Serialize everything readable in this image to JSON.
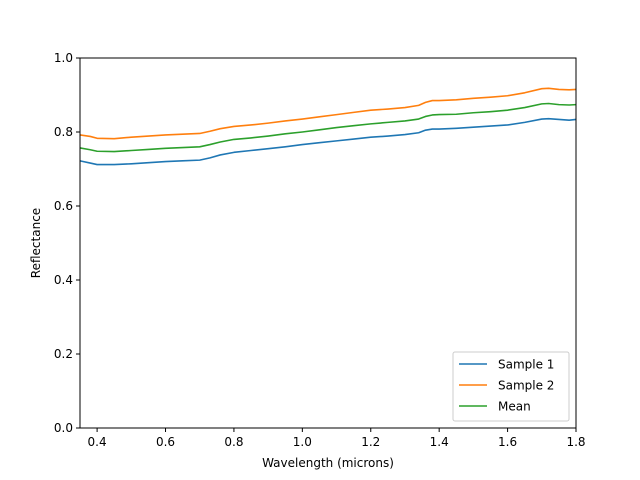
{
  "chart_data": {
    "type": "line",
    "title": "",
    "xlabel": "Wavelength (microns)",
    "ylabel": "Reflectance",
    "xlim": [
      0.35,
      1.8
    ],
    "ylim": [
      0.0,
      1.0
    ],
    "xticks": [
      0.4,
      0.6,
      0.8,
      1.0,
      1.2,
      1.4,
      1.6,
      1.8
    ],
    "xtick_labels": [
      "0.4",
      "0.6",
      "0.8",
      "1.0",
      "1.2",
      "1.4",
      "1.6",
      "1.8"
    ],
    "yticks": [
      0.0,
      0.2,
      0.4,
      0.6,
      0.8,
      1.0
    ],
    "ytick_labels": [
      "0.0",
      "0.2",
      "0.4",
      "0.6",
      "0.8",
      "1.0"
    ],
    "grid": false,
    "legend_position": "lower-right",
    "series": [
      {
        "name": "Sample 1",
        "color": "#1f77b4",
        "x": [
          0.35,
          0.38,
          0.4,
          0.45,
          0.5,
          0.55,
          0.6,
          0.65,
          0.7,
          0.73,
          0.76,
          0.8,
          0.85,
          0.9,
          0.95,
          1.0,
          1.05,
          1.1,
          1.15,
          1.2,
          1.25,
          1.3,
          1.34,
          1.36,
          1.38,
          1.4,
          1.45,
          1.5,
          1.55,
          1.6,
          1.65,
          1.7,
          1.72,
          1.75,
          1.78,
          1.8
        ],
        "y": [
          0.722,
          0.716,
          0.712,
          0.712,
          0.714,
          0.717,
          0.72,
          0.722,
          0.724,
          0.73,
          0.738,
          0.745,
          0.75,
          0.755,
          0.76,
          0.766,
          0.771,
          0.776,
          0.781,
          0.786,
          0.789,
          0.793,
          0.798,
          0.805,
          0.808,
          0.808,
          0.81,
          0.813,
          0.816,
          0.819,
          0.826,
          0.835,
          0.836,
          0.834,
          0.832,
          0.834
        ]
      },
      {
        "name": "Sample 2",
        "color": "#ff7f0e",
        "x": [
          0.35,
          0.38,
          0.4,
          0.45,
          0.5,
          0.55,
          0.6,
          0.65,
          0.7,
          0.73,
          0.76,
          0.8,
          0.85,
          0.9,
          0.95,
          1.0,
          1.05,
          1.1,
          1.15,
          1.2,
          1.25,
          1.3,
          1.34,
          1.36,
          1.38,
          1.4,
          1.45,
          1.5,
          1.55,
          1.6,
          1.65,
          1.7,
          1.72,
          1.75,
          1.78,
          1.8
        ],
        "y": [
          0.792,
          0.788,
          0.783,
          0.782,
          0.786,
          0.789,
          0.792,
          0.794,
          0.796,
          0.802,
          0.809,
          0.815,
          0.819,
          0.824,
          0.83,
          0.835,
          0.841,
          0.847,
          0.853,
          0.859,
          0.862,
          0.866,
          0.872,
          0.88,
          0.885,
          0.885,
          0.887,
          0.891,
          0.894,
          0.898,
          0.906,
          0.917,
          0.918,
          0.915,
          0.914,
          0.915
        ]
      },
      {
        "name": "Mean",
        "color": "#2ca02c",
        "x": [
          0.35,
          0.38,
          0.4,
          0.45,
          0.5,
          0.55,
          0.6,
          0.65,
          0.7,
          0.73,
          0.76,
          0.8,
          0.85,
          0.9,
          0.95,
          1.0,
          1.05,
          1.1,
          1.15,
          1.2,
          1.25,
          1.3,
          1.34,
          1.36,
          1.38,
          1.4,
          1.45,
          1.5,
          1.55,
          1.6,
          1.65,
          1.7,
          1.72,
          1.75,
          1.78,
          1.8
        ],
        "y": [
          0.757,
          0.752,
          0.748,
          0.747,
          0.75,
          0.753,
          0.756,
          0.758,
          0.76,
          0.766,
          0.773,
          0.78,
          0.784,
          0.789,
          0.795,
          0.8,
          0.806,
          0.812,
          0.817,
          0.822,
          0.826,
          0.83,
          0.835,
          0.842,
          0.846,
          0.847,
          0.848,
          0.852,
          0.855,
          0.859,
          0.866,
          0.876,
          0.877,
          0.874,
          0.873,
          0.874
        ]
      }
    ]
  }
}
